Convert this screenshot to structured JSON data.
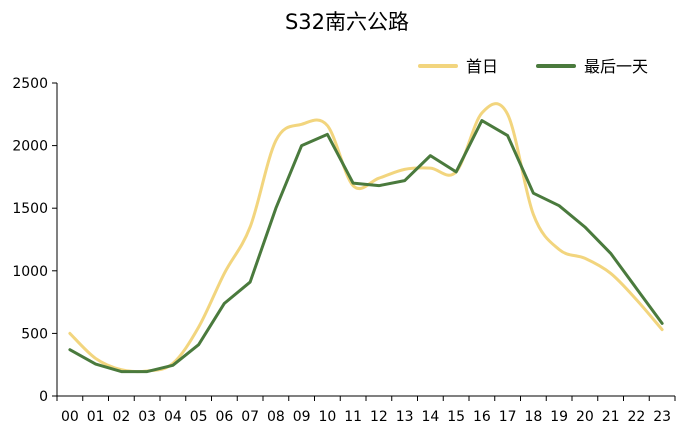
{
  "chart_data": {
    "type": "line",
    "title": "S32南六公路",
    "categories": [
      "00",
      "01",
      "02",
      "03",
      "04",
      "05",
      "06",
      "07",
      "08",
      "09",
      "10",
      "11",
      "12",
      "13",
      "14",
      "15",
      "16",
      "17",
      "18",
      "19",
      "20",
      "21",
      "22",
      "23"
    ],
    "series": [
      {
        "name": "首日",
        "color": "#f2d57e",
        "smooth": true,
        "values": [
          500,
          300,
          210,
          200,
          260,
          550,
          980,
          1350,
          2040,
          2170,
          2160,
          1680,
          1740,
          1810,
          1820,
          1790,
          2260,
          2250,
          1450,
          1170,
          1100,
          980,
          770,
          530
        ]
      },
      {
        "name": "最后一天",
        "color": "#4a7a3d",
        "smooth": false,
        "values": [
          370,
          255,
          195,
          195,
          245,
          410,
          740,
          910,
          1500,
          2000,
          2090,
          1700,
          1680,
          1720,
          1920,
          1790,
          2200,
          2080,
          1620,
          1520,
          1350,
          1140,
          860,
          580
        ]
      }
    ],
    "y_ticks": [
      "0",
      "500",
      "1000",
      "1500",
      "2000",
      "2500"
    ],
    "ylim": [
      0,
      2500
    ],
    "grid": false,
    "legend_position": "top-right"
  }
}
